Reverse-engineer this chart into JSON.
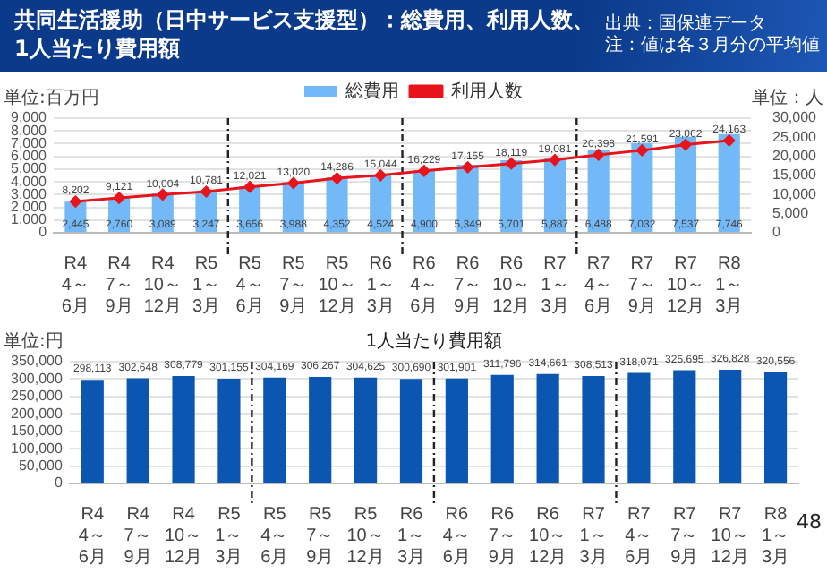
{
  "chart_data": [
    {
      "type": "bar",
      "title": "共同生活援助（日中サービス支援型）：総費用、利用人数、1人当たり費用額",
      "annotations": [
        "出典：国保連データ",
        "注：値は各３月分の平均値"
      ],
      "categories": [
        "R4 4～6月",
        "R4 7～9月",
        "R4 10～12月",
        "R5 1～3月",
        "R5 4～6月",
        "R5 7～9月",
        "R5 10～12月",
        "R6 1～3月",
        "R6 4～6月",
        "R6 7～9月",
        "R6 10～12月",
        "R7 1～3月",
        "R7 4～6月",
        "R7 7～9月",
        "R7 10～12月",
        "R8 1～3月"
      ],
      "series": [
        {
          "name": "総費用",
          "type": "bar",
          "color": "#74b9f7",
          "values": [
            2445,
            2760,
            3089,
            3247,
            3656,
            3988,
            4352,
            4524,
            4900,
            5349,
            5701,
            5887,
            6488,
            7032,
            7537,
            7746
          ],
          "value_labels": [
            "2,445",
            "2,760",
            "3,089",
            "3,247",
            "3,656",
            "3,988",
            "4,352",
            "4,524",
            "4,900",
            "5,349",
            "5,701",
            "5,887",
            "6,488",
            "7,032",
            "7,537",
            "7,746"
          ]
        },
        {
          "name": "利用人数",
          "type": "line",
          "axis": "y2",
          "color": "#e8141c",
          "values": [
            8202,
            9121,
            10004,
            10781,
            12021,
            13020,
            14286,
            15044,
            16229,
            17155,
            18119,
            19081,
            20398,
            21591,
            23062,
            24163
          ],
          "value_labels": [
            "8,202",
            "9,121",
            "10,004",
            "10,781",
            "12,021",
            "13,020",
            "14,286",
            "15,044",
            "16,229",
            "17,155",
            "18,119",
            "19,081",
            "20,398",
            "21,591",
            "23,062",
            "24,163"
          ]
        }
      ],
      "ylabel": "単位:百万円",
      "y2label": "単位：人",
      "ylim": [
        0,
        9000
      ],
      "yticks": [
        0,
        {
          "value": 1000,
          "label": "1,000"
        },
        {
          "value": 2000,
          "label": "2,000"
        },
        {
          "value": 3000,
          "label": "3,000"
        },
        {
          "value": 4000,
          "label": "4,000"
        },
        {
          "value": 5000,
          "label": "5,000"
        },
        {
          "value": 6000,
          "label": "6,000"
        },
        {
          "value": 7000,
          "label": "7,000"
        },
        {
          "value": 8000,
          "label": "8,000"
        },
        {
          "value": 9000,
          "label": "9,000"
        }
      ],
      "y2lim": [
        0,
        30000
      ],
      "y2ticks": [
        0,
        {
          "value": 5000,
          "label": "5,000"
        },
        {
          "value": 10000,
          "label": "10,000"
        },
        {
          "value": 15000,
          "label": "15,000"
        },
        {
          "value": 20000,
          "label": "20,000"
        },
        {
          "value": 25000,
          "label": "25,000"
        },
        {
          "value": 30000,
          "label": "30,000"
        }
      ],
      "grid": "y",
      "legend": "top",
      "marker": "diamond"
    },
    {
      "type": "bar",
      "title": "1人当たり費用額",
      "annotations": [
        "48"
      ],
      "categories": [
        "R4 4～6月",
        "R4 7～9月",
        "R4 10～12月",
        "R5 1～3月",
        "R5 4～6月",
        "R5 7～9月",
        "R5 10～12月",
        "R6 1～3月",
        "R6 4～6月",
        "R6 7～9月",
        "R6 10～12月",
        "R7 1～3月",
        "R7 4～6月",
        "R7 7～9月",
        "R7 10～12月",
        "R8 1～3月"
      ],
      "series": [
        {
          "color": "#0a56b0",
          "values": [
            298113,
            302648,
            308779,
            301155,
            304169,
            306267,
            304625,
            300690,
            301901,
            311796,
            314661,
            308513,
            318071,
            325695,
            326828,
            320556
          ],
          "value_labels": [
            "298,113",
            "302,648",
            "308,779",
            "301,155",
            "304,169",
            "306,267",
            "304,625",
            "300,690",
            "301,901",
            "311,796",
            "314,661",
            "308,513",
            "318,071",
            "325,695",
            "326,828",
            "320,556"
          ]
        }
      ],
      "ylabel": "単位:円",
      "ylim": [
        0,
        350000
      ],
      "yticks": [
        0,
        {
          "value": 50000,
          "label": "50,000"
        },
        {
          "value": 100000,
          "label": "100,000"
        },
        {
          "value": 150000,
          "label": "150,000"
        },
        {
          "value": 200000,
          "label": "200,000"
        },
        {
          "value": 250000,
          "label": "250,000"
        },
        {
          "value": 300000,
          "label": "300,000"
        },
        {
          "value": 350000,
          "label": "350,000"
        }
      ],
      "grid": "y"
    }
  ]
}
